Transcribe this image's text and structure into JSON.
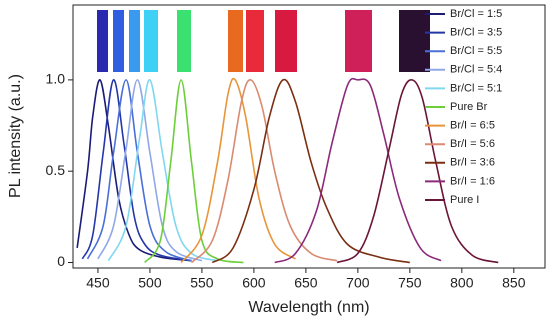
{
  "chart_data": {
    "type": "line",
    "x_label": "Wavelength (nm)",
    "y_label": "PL intensity (a.u.)",
    "xlim": [
      426,
      880
    ],
    "ylim": [
      -0.03,
      1.41
    ],
    "xticks": [
      450,
      500,
      550,
      600,
      650,
      700,
      750,
      800,
      850
    ],
    "yticks": [
      0,
      0.5,
      {
        "value": 1,
        "label": "1.0"
      }
    ],
    "legend": "upper right",
    "grid": false,
    "series": [
      {
        "name": "Br/Cl = 1:5",
        "color": "#1b1b78",
        "x": [
          430,
          440,
          445,
          452,
          460,
          470,
          480,
          490,
          510,
          540
        ],
        "values": [
          0.08,
          0.5,
          0.8,
          1.0,
          0.75,
          0.35,
          0.15,
          0.07,
          0.03,
          0.01
        ]
      },
      {
        "name": "Br/Cl = 3:5",
        "color": "#2536a8",
        "x": [
          435,
          445,
          455,
          465,
          475,
          485,
          495,
          510,
          540
        ],
        "values": [
          0.02,
          0.15,
          0.6,
          1.0,
          0.65,
          0.25,
          0.1,
          0.04,
          0.01
        ]
      },
      {
        "name": "Br/Cl = 5:5",
        "color": "#4a70d8",
        "x": [
          440,
          455,
          465,
          477,
          488,
          500,
          515,
          540
        ],
        "values": [
          0.02,
          0.2,
          0.6,
          1.0,
          0.6,
          0.2,
          0.06,
          0.01
        ]
      },
      {
        "name": "Br/Cl = 5:4",
        "color": "#8fa8e8",
        "x": [
          450,
          465,
          477,
          488,
          500,
          512,
          525,
          550
        ],
        "values": [
          0.02,
          0.2,
          0.62,
          1.0,
          0.6,
          0.2,
          0.06,
          0.01
        ]
      },
      {
        "name": "Br/Cl = 5:1",
        "color": "#80d8f0",
        "x": [
          460,
          477,
          490,
          500,
          512,
          525,
          540,
          565
        ],
        "values": [
          0.01,
          0.2,
          0.68,
          1.0,
          0.6,
          0.2,
          0.05,
          0.01
        ]
      },
      {
        "name": "Pure Br",
        "color": "#6ccf3a",
        "x": [
          495,
          510,
          520,
          530,
          540,
          550,
          565,
          590
        ],
        "values": [
          0.0,
          0.12,
          0.55,
          1.0,
          0.55,
          0.12,
          0.02,
          0.0
        ]
      },
      {
        "name": "Br/I = 6:5",
        "color": "#e8953a",
        "x": [
          530,
          550,
          565,
          575,
          582,
          592,
          605,
          620,
          640
        ],
        "values": [
          0.0,
          0.15,
          0.55,
          0.92,
          1.0,
          0.8,
          0.35,
          0.1,
          0.02
        ]
      },
      {
        "name": "Br/I = 5:6",
        "color": "#d98a70",
        "x": [
          540,
          560,
          575,
          588,
          597,
          608,
          620,
          635,
          655,
          680
        ],
        "values": [
          0.0,
          0.12,
          0.45,
          0.88,
          1.0,
          0.85,
          0.5,
          0.2,
          0.05,
          0.01
        ]
      },
      {
        "name": "Br/I = 3:6",
        "color": "#7a2e12",
        "x": [
          560,
          580,
          600,
          615,
          628,
          640,
          655,
          670,
          690,
          720,
          750
        ],
        "values": [
          0.0,
          0.08,
          0.4,
          0.8,
          1.0,
          0.88,
          0.55,
          0.3,
          0.1,
          0.03,
          0.0
        ]
      },
      {
        "name": "Br/I = 1:6",
        "color": "#8b2a7a",
        "x": [
          620,
          640,
          660,
          675,
          690,
          700,
          712,
          725,
          740,
          760,
          780
        ],
        "values": [
          0.0,
          0.05,
          0.28,
          0.65,
          0.97,
          1.0,
          0.97,
          0.7,
          0.35,
          0.08,
          0.01
        ]
      },
      {
        "name": "Pure I",
        "color": "#6a1538",
        "x": [
          680,
          700,
          715,
          730,
          742,
          752,
          762,
          775,
          790,
          810,
          835
        ],
        "values": [
          0.0,
          0.05,
          0.25,
          0.62,
          0.92,
          1.0,
          0.9,
          0.55,
          0.2,
          0.04,
          0.0
        ]
      }
    ]
  }
}
